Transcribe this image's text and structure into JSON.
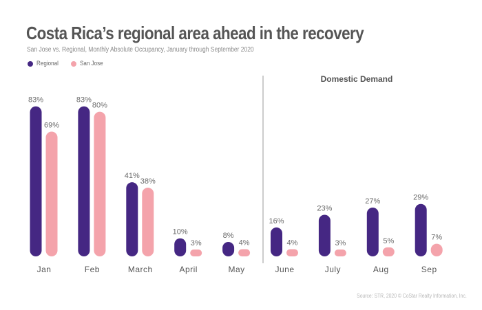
{
  "header": {
    "title": "Costa Rica’s regional area ahead in the recovery",
    "subtitle": "San Jose vs. Regional, Monthly Absolute Occupancy, January through September 2020"
  },
  "footer": {
    "source": "Source: STR, 2020 © CoStar Realty Information, Inc."
  },
  "colors": {
    "regional": "#452783",
    "san_jose": "#f4a3ab",
    "divider": "#9a9a9a"
  },
  "chart_data": {
    "type": "bar",
    "title": "Costa Rica’s regional area ahead in the recovery",
    "subtitle": "San Jose vs. Regional, Monthly Absolute Occupancy, January through September 2020",
    "xlabel": "",
    "ylabel": "",
    "ylim": [
      0,
      100
    ],
    "unit": "%",
    "grid": false,
    "legend_position": "top-left",
    "categories": [
      "Jan",
      "Feb",
      "March",
      "April",
      "May",
      "June",
      "July",
      "Aug",
      "Sep"
    ],
    "series": [
      {
        "name": "Regional",
        "color": "#452783",
        "values": [
          83,
          83,
          41,
          10,
          8,
          16,
          23,
          27,
          29
        ]
      },
      {
        "name": "San Jose",
        "color": "#f4a3ab",
        "values": [
          69,
          80,
          38,
          3,
          4,
          4,
          3,
          5,
          7
        ]
      }
    ],
    "annotations": [
      {
        "text": "Domestic Demand",
        "region_start_category": "June",
        "divider_before_category": "June"
      }
    ],
    "source": "Source: STR, 2020 © CoStar Realty Information, Inc."
  }
}
